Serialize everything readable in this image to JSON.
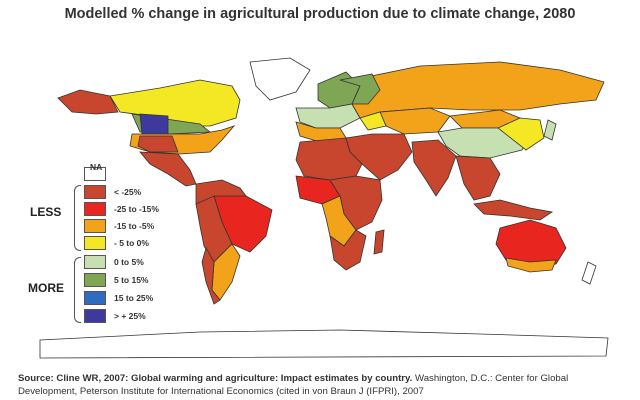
{
  "title": "Modelled % change in agricultural production due to climate change, 2080",
  "legend": {
    "na_label": "NA",
    "groups": [
      {
        "label": "LESS"
      },
      {
        "label": "MORE"
      }
    ],
    "items": [
      {
        "label": "NA",
        "color": "#ffffff"
      },
      {
        "label": "< -25%",
        "color": "#c8462e"
      },
      {
        "label": "-25 to -15%",
        "color": "#e8261f"
      },
      {
        "label": "-15 to -5%",
        "color": "#f2a319"
      },
      {
        "label": "- 5 to 0%",
        "color": "#f4e723"
      },
      {
        "label": "0 to 5%",
        "color": "#c6e0b1"
      },
      {
        "label": "5 to 15%",
        "color": "#7fa654"
      },
      {
        "label": "15 to 25%",
        "color": "#2d6cc0"
      },
      {
        "label": "> + 25%",
        "color": "#3c3a9c"
      }
    ]
  },
  "source": {
    "bold": "Source: Cline WR, 2007: Global warming and agriculture: Impact estimates by country.",
    "rest": " Washington, D.C.: Center for Global Development, Peterson Institute for International Economics (cited in von Braun J (IFPRI), 2007"
  },
  "colors": {
    "lt25": "#c8462e",
    "m25_15": "#e8261f",
    "m15_5": "#f2a319",
    "m5_0": "#f4e723",
    "p0_5": "#c6e0b1",
    "p5_15": "#7fa654",
    "p15_25": "#2d6cc0",
    "gt25": "#3c3a9c",
    "na": "#ffffff",
    "outline": "#333333"
  }
}
